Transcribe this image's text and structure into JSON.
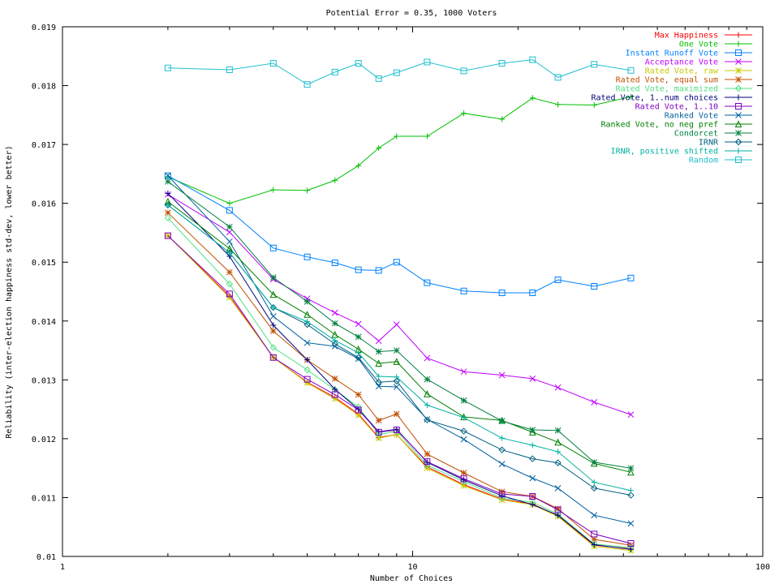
{
  "chart_data": {
    "type": "line",
    "title": "Potential Error = 0.35, 1000 Voters",
    "xlabel": "Number of Choices",
    "ylabel": "Reliability (inter-election happiness std-dev, lower better)",
    "x_scale": "log",
    "xlim": [
      1,
      100
    ],
    "ylim": [
      0.01,
      0.019
    ],
    "x_ticks": [
      1,
      10,
      100
    ],
    "x_tick_labels": [
      "1",
      "10",
      "100"
    ],
    "y_ticks": [
      0.01,
      0.011,
      0.012,
      0.013,
      0.014,
      0.015,
      0.016,
      0.017,
      0.018,
      0.019
    ],
    "y_tick_labels": [
      "0.01",
      "0.011",
      "0.012",
      "0.013",
      "0.014",
      "0.015",
      "0.016",
      "0.017",
      "0.018",
      "0.019"
    ],
    "grid": false,
    "legend": "top-right",
    "x": [
      2,
      3,
      4,
      5,
      6,
      7,
      8,
      9,
      11,
      14,
      18,
      22,
      26,
      33,
      42
    ],
    "series": [
      {
        "name": "Max Happiness",
        "color": "#ff0000",
        "marker": "plus",
        "values": [
          0.01545,
          0.01442,
          0.01338,
          0.01296,
          0.0127,
          0.01242,
          0.01202,
          0.01207,
          0.01152,
          0.01122,
          0.01097,
          0.01089,
          0.01069,
          0.01019,
          0.01013
        ]
      },
      {
        "name": "One Vote",
        "color": "#00c000",
        "marker": "plus",
        "values": [
          0.01645,
          0.016,
          0.01623,
          0.01622,
          0.01639,
          0.01664,
          0.01694,
          0.01714,
          0.01714,
          0.01753,
          0.01743,
          0.01779,
          0.01768,
          0.01767,
          0.01781
        ]
      },
      {
        "name": "Instant Runoff Vote",
        "color": "#0080ff",
        "marker": "square",
        "values": [
          0.01647,
          0.01588,
          0.01524,
          0.01509,
          0.01499,
          0.01487,
          0.01486,
          0.015,
          0.01465,
          0.01451,
          0.01448,
          0.01448,
          0.0147,
          0.01459,
          0.01473
        ]
      },
      {
        "name": "Acceptance Vote",
        "color": "#c000ff",
        "marker": "cross",
        "values": [
          0.01615,
          0.01551,
          0.01471,
          0.01438,
          0.01414,
          0.01395,
          0.01366,
          0.01394,
          0.01337,
          0.01314,
          0.01308,
          0.01302,
          0.01287,
          0.01262,
          0.01241
        ]
      },
      {
        "name": "Rated Vote, raw",
        "color": "#c8c800",
        "marker": "star",
        "values": [
          0.01545,
          0.0144,
          0.01338,
          0.01295,
          0.01268,
          0.0124,
          0.01201,
          0.01207,
          0.0115,
          0.0112,
          0.01096,
          0.01088,
          0.01068,
          0.01017,
          0.0101
        ]
      },
      {
        "name": "Rated Vote, equal sum",
        "color": "#c05000",
        "marker": "star",
        "values": [
          0.01584,
          0.01483,
          0.01383,
          0.01334,
          0.01302,
          0.01275,
          0.01231,
          0.01242,
          0.01174,
          0.01142,
          0.0111,
          0.01102,
          0.01081,
          0.01029,
          0.01019
        ]
      },
      {
        "name": "Rated Vote, maximized",
        "color": "#50e080",
        "marker": "diamond",
        "values": [
          0.01575,
          0.01463,
          0.01355,
          0.01317,
          0.01283,
          0.01254,
          0.01207,
          0.01213,
          0.01155,
          0.01127,
          0.01099,
          0.01092,
          0.01072,
          0.01021,
          0.01015
        ]
      },
      {
        "name": "Rated Vote, 1..num choices",
        "color": "#000080",
        "marker": "plus",
        "values": [
          0.01617,
          0.0151,
          0.01393,
          0.01334,
          0.01284,
          0.0125,
          0.01212,
          0.01216,
          0.0116,
          0.0113,
          0.01103,
          0.01088,
          0.0107,
          0.0102,
          0.01012
        ]
      },
      {
        "name": "Rated Vote, 1..10",
        "color": "#8000c0",
        "marker": "square",
        "values": [
          0.01545,
          0.01446,
          0.01338,
          0.01301,
          0.01275,
          0.01249,
          0.01211,
          0.01215,
          0.01161,
          0.01132,
          0.01106,
          0.01102,
          0.01079,
          0.01038,
          0.01022
        ]
      },
      {
        "name": "Ranked Vote",
        "color": "#0060a0",
        "marker": "cross",
        "values": [
          0.01647,
          0.01535,
          0.01408,
          0.01363,
          0.01357,
          0.01336,
          0.01289,
          0.01288,
          0.01233,
          0.01199,
          0.01157,
          0.01133,
          0.01116,
          0.0107,
          0.01056
        ]
      },
      {
        "name": "Ranked Vote, no neg pref",
        "color": "#008000",
        "marker": "triangle",
        "values": [
          0.01603,
          0.01523,
          0.01445,
          0.01411,
          0.01377,
          0.01352,
          0.01328,
          0.01331,
          0.01276,
          0.01237,
          0.01231,
          0.01211,
          0.01194,
          0.01158,
          0.01143
        ]
      },
      {
        "name": "Condorcet",
        "color": "#008040",
        "marker": "star",
        "values": [
          0.01637,
          0.0156,
          0.01474,
          0.01433,
          0.01396,
          0.01373,
          0.01348,
          0.0135,
          0.01301,
          0.01265,
          0.0123,
          0.01215,
          0.01214,
          0.0116,
          0.0115
        ]
      },
      {
        "name": "IRNR",
        "color": "#006080",
        "marker": "diamond",
        "values": [
          0.01597,
          0.01516,
          0.01423,
          0.01394,
          0.01361,
          0.01338,
          0.01296,
          0.01298,
          0.01232,
          0.01213,
          0.01181,
          0.01166,
          0.01159,
          0.01116,
          0.01104
        ]
      },
      {
        "name": "IRNR, positive shifted",
        "color": "#00b0a0",
        "marker": "plus",
        "values": [
          0.01597,
          0.01516,
          0.01423,
          0.01399,
          0.01367,
          0.01346,
          0.01306,
          0.01305,
          0.01257,
          0.01236,
          0.01201,
          0.01189,
          0.01178,
          0.01126,
          0.01112
        ]
      },
      {
        "name": "Random",
        "color": "#20c0d0",
        "marker": "square",
        "values": [
          0.0183,
          0.01827,
          0.01838,
          0.01802,
          0.01823,
          0.01838,
          0.01812,
          0.01822,
          0.0184,
          0.01825,
          0.01838,
          0.01844,
          0.01814,
          0.01836,
          0.01826
        ]
      }
    ]
  }
}
